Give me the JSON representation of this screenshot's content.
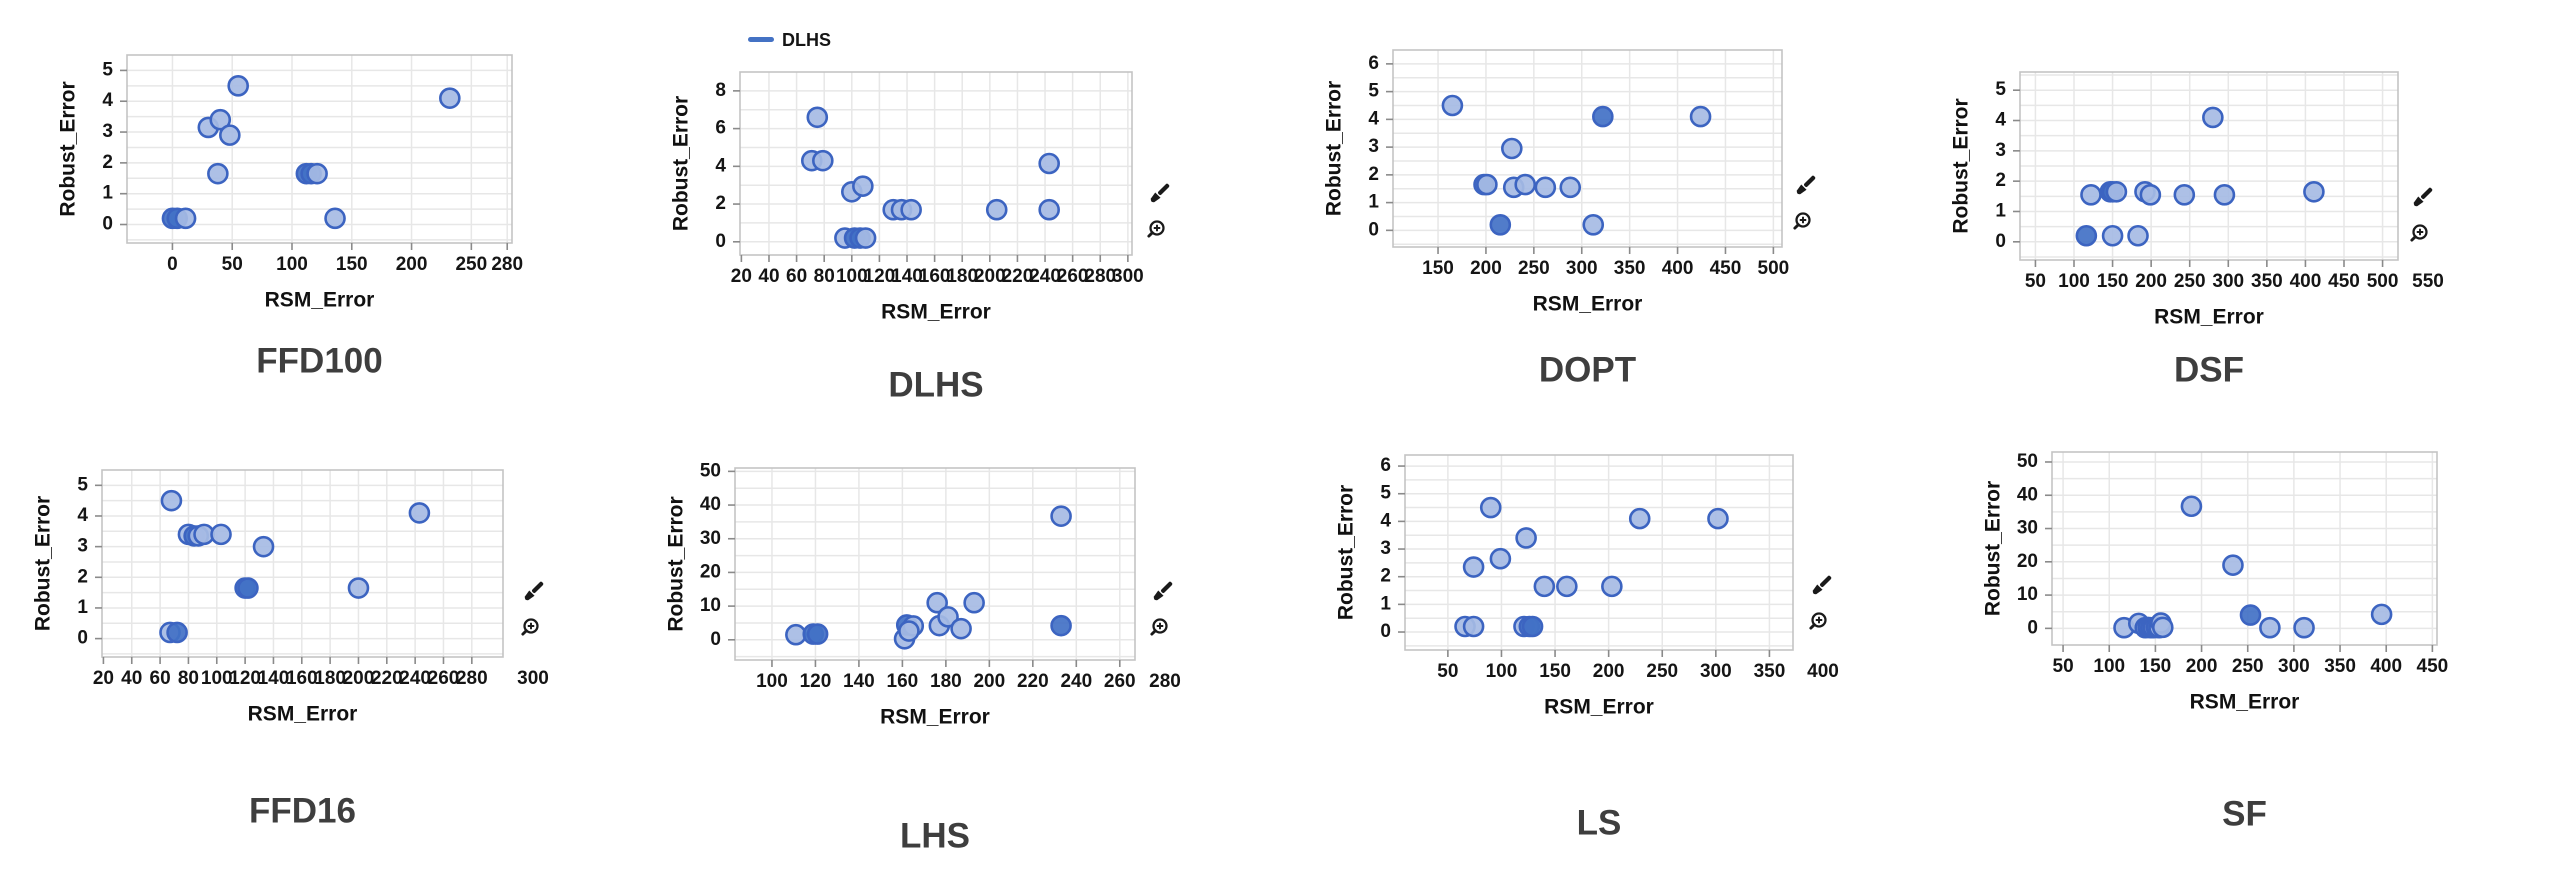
{
  "report": {
    "xlabel": "RSM_Error",
    "ylabel": "Robust_Error",
    "legend": {
      "label": "DLHS"
    }
  },
  "colors": {
    "background": "#ffffff",
    "marker_stroke": "#3c64c1",
    "marker_fill": "#a6bbe4",
    "marker_fill_dark": "#4271c6",
    "grid": "#e7e7e7",
    "frame": "#c4c4c4",
    "tick_mark": "#8a8a8a",
    "tick_label": "#151515",
    "axis_label": "#111111",
    "panel_title": "#3e3e3e",
    "legend_accent": "#4472c4",
    "icon": "#1a1a1a"
  },
  "chart_data": [
    {
      "name": "FFD100",
      "type": "scatter",
      "title": "FFD100",
      "xlabel": "RSM_Error",
      "ylabel": "Robust_Error",
      "xticks": [
        0,
        50,
        100,
        150,
        200,
        250,
        280
      ],
      "yticks": [
        0,
        1,
        2,
        3,
        4,
        5
      ],
      "yminor": 0.5,
      "xlim": [
        -38,
        284
      ],
      "ylim": [
        -0.6,
        5.5
      ],
      "grid": true,
      "legend": null,
      "icons": [],
      "points": [
        [
          0,
          0.2,
          1
        ],
        [
          4,
          0.2,
          1
        ],
        [
          11,
          0.2,
          0
        ],
        [
          30,
          3.15,
          0
        ],
        [
          40,
          3.4,
          0
        ],
        [
          48,
          2.9,
          0
        ],
        [
          38,
          1.65,
          0
        ],
        [
          55,
          4.5,
          0
        ],
        [
          112,
          1.65,
          1
        ],
        [
          116,
          1.65,
          1
        ],
        [
          121,
          1.65,
          0
        ],
        [
          136,
          0.2,
          0
        ],
        [
          232,
          4.1,
          0
        ]
      ]
    },
    {
      "name": "DLHS",
      "type": "scatter",
      "title": "DLHS",
      "xlabel": "RSM_Error",
      "ylabel": "Robust_Error",
      "xticks": [
        20,
        40,
        60,
        80,
        100,
        120,
        140,
        160,
        180,
        200,
        220,
        240,
        260,
        280,
        300
      ],
      "yticks": [
        0,
        2,
        4,
        6,
        8
      ],
      "yminor": 1,
      "xlim": [
        19,
        303
      ],
      "ylim": [
        -0.7,
        9.0
      ],
      "grid": true,
      "legend": {
        "label": "DLHS"
      },
      "icons": [
        "brush-icon",
        "zoom-in-icon"
      ],
      "points": [
        [
          71,
          4.3,
          0
        ],
        [
          79,
          4.3,
          0
        ],
        [
          75,
          6.6,
          0
        ],
        [
          100,
          2.65,
          0
        ],
        [
          108,
          2.95,
          0
        ],
        [
          130,
          1.7,
          0
        ],
        [
          136,
          1.7,
          0
        ],
        [
          143,
          1.7,
          0
        ],
        [
          205,
          1.7,
          0
        ],
        [
          243,
          4.15,
          0
        ],
        [
          243,
          1.7,
          0
        ],
        [
          95,
          0.2,
          0
        ],
        [
          102,
          0.2,
          1
        ],
        [
          106,
          0.2,
          1
        ],
        [
          110,
          0.2,
          0
        ]
      ]
    },
    {
      "name": "DOPT",
      "type": "scatter",
      "title": "DOPT",
      "xlabel": "RSM_Error",
      "ylabel": "Robust_Error",
      "xticks": [
        150,
        200,
        250,
        300,
        350,
        400,
        450,
        500
      ],
      "yticks": [
        0,
        1,
        2,
        3,
        4,
        5,
        6
      ],
      "yminor": 0.5,
      "xlim": [
        103,
        509
      ],
      "ylim": [
        -0.6,
        6.5
      ],
      "grid": true,
      "legend": null,
      "icons": [
        "brush-icon",
        "zoom-in-icon"
      ],
      "points": [
        [
          165,
          4.5,
          0
        ],
        [
          198,
          1.65,
          1
        ],
        [
          201,
          1.65,
          0
        ],
        [
          227,
          2.95,
          0
        ],
        [
          229,
          1.55,
          0
        ],
        [
          241,
          1.65,
          0
        ],
        [
          262,
          1.55,
          0
        ],
        [
          288,
          1.55,
          0
        ],
        [
          215,
          0.2,
          1
        ],
        [
          312,
          0.2,
          0
        ],
        [
          322,
          4.1,
          1
        ],
        [
          424,
          4.1,
          0
        ]
      ]
    },
    {
      "name": "DSF",
      "type": "scatter",
      "title": "DSF",
      "xlabel": "RSM_Error",
      "ylabel": "Robust_Error",
      "xticks": [
        50,
        100,
        150,
        200,
        250,
        300,
        350,
        400,
        450,
        500,
        550
      ],
      "yticks": [
        0,
        1,
        2,
        3,
        4,
        5
      ],
      "yminor": 0.5,
      "xlim": [
        30,
        520
      ],
      "ylim": [
        -0.6,
        5.6
      ],
      "grid": true,
      "legend": null,
      "icons": [
        "brush-icon",
        "zoom-in-icon"
      ],
      "points": [
        [
          122,
          1.55,
          0
        ],
        [
          147,
          1.65,
          1
        ],
        [
          150,
          1.65,
          1
        ],
        [
          155,
          1.65,
          0
        ],
        [
          192,
          1.65,
          0
        ],
        [
          199,
          1.55,
          0
        ],
        [
          243,
          1.55,
          0
        ],
        [
          295,
          1.55,
          0
        ],
        [
          411,
          1.65,
          0
        ],
        [
          280,
          4.1,
          0
        ],
        [
          116,
          0.2,
          1
        ],
        [
          150,
          0.2,
          0
        ],
        [
          183,
          0.2,
          0
        ]
      ]
    },
    {
      "name": "FFD16",
      "type": "scatter",
      "title": "FFD16",
      "xlabel": "RSM_Error",
      "ylabel": "Robust_Error",
      "xticks": [
        20,
        40,
        60,
        80,
        100,
        120,
        140,
        160,
        180,
        200,
        220,
        240,
        260,
        280,
        300
      ],
      "yticks": [
        0,
        1,
        2,
        3,
        4,
        5
      ],
      "yminor": 0.5,
      "xlim": [
        19,
        302
      ],
      "ylim": [
        -0.6,
        5.5
      ],
      "grid": true,
      "legend": null,
      "icons": [
        "brush-icon",
        "zoom-in-icon"
      ],
      "points": [
        [
          68,
          4.5,
          0
        ],
        [
          80,
          3.4,
          0
        ],
        [
          84,
          3.35,
          1
        ],
        [
          87,
          3.35,
          0
        ],
        [
          91,
          3.4,
          0
        ],
        [
          103,
          3.4,
          0
        ],
        [
          133,
          3.0,
          0
        ],
        [
          120,
          1.65,
          1
        ],
        [
          122,
          1.65,
          1
        ],
        [
          200,
          1.65,
          0
        ],
        [
          243,
          4.1,
          0
        ],
        [
          67,
          0.2,
          0
        ],
        [
          72,
          0.2,
          1
        ]
      ]
    },
    {
      "name": "LHS",
      "type": "scatter",
      "title": "LHS",
      "xlabel": "RSM_Error",
      "ylabel": "Robust_Error",
      "xticks": [
        100,
        120,
        140,
        160,
        180,
        200,
        220,
        240,
        260,
        280
      ],
      "yticks": [
        0,
        10,
        20,
        30,
        40,
        50
      ],
      "yminor": 5,
      "xlim": [
        83,
        267
      ],
      "ylim": [
        -6,
        51
      ],
      "grid": true,
      "legend": null,
      "icons": [
        "brush-icon",
        "zoom-in-icon"
      ],
      "points": [
        [
          111,
          1.5,
          0
        ],
        [
          119,
          1.7,
          1
        ],
        [
          121,
          1.7,
          1
        ],
        [
          161,
          0.3,
          0
        ],
        [
          162,
          4.4,
          1
        ],
        [
          165,
          4.1,
          0
        ],
        [
          163,
          2.6,
          0
        ],
        [
          176,
          11,
          0
        ],
        [
          177,
          4.2,
          0
        ],
        [
          181,
          6.8,
          0
        ],
        [
          187,
          3.3,
          0
        ],
        [
          193,
          11,
          0
        ],
        [
          233,
          36.7,
          0
        ],
        [
          233,
          4.2,
          1
        ]
      ]
    },
    {
      "name": "LS",
      "type": "scatter",
      "title": "LS",
      "xlabel": "RSM_Error",
      "ylabel": "Robust_Error",
      "xticks": [
        50,
        100,
        150,
        200,
        250,
        300,
        350,
        400
      ],
      "yticks": [
        0,
        1,
        2,
        3,
        4,
        5,
        6
      ],
      "yminor": 0.5,
      "xlim": [
        10,
        372
      ],
      "ylim": [
        -0.65,
        6.4
      ],
      "grid": true,
      "legend": null,
      "icons": [
        "brush-icon",
        "zoom-in-icon"
      ],
      "points": [
        [
          90,
          4.5,
          0
        ],
        [
          74,
          2.35,
          0
        ],
        [
          99,
          2.65,
          0
        ],
        [
          123,
          3.4,
          0
        ],
        [
          140,
          1.65,
          0
        ],
        [
          161,
          1.65,
          0
        ],
        [
          203,
          1.65,
          0
        ],
        [
          229,
          4.1,
          0
        ],
        [
          302,
          4.1,
          0
        ],
        [
          66,
          0.2,
          0
        ],
        [
          74,
          0.2,
          0
        ],
        [
          121,
          0.2,
          0
        ],
        [
          126,
          0.2,
          1
        ],
        [
          129,
          0.2,
          1
        ]
      ]
    },
    {
      "name": "SF",
      "type": "scatter",
      "title": "SF",
      "xlabel": "RSM_Error",
      "ylabel": "Robust_Error",
      "xticks": [
        50,
        100,
        150,
        200,
        250,
        300,
        350,
        400,
        450
      ],
      "yticks": [
        0,
        10,
        20,
        30,
        40,
        50
      ],
      "yminor": 5,
      "xlim": [
        38,
        455
      ],
      "ylim": [
        -5,
        53
      ],
      "grid": true,
      "legend": null,
      "icons": [],
      "points": [
        [
          116,
          0.2,
          0
        ],
        [
          132,
          1.5,
          0
        ],
        [
          139,
          0.2,
          0
        ],
        [
          142,
          0.3,
          1
        ],
        [
          145,
          0.2,
          1
        ],
        [
          148,
          0.2,
          0
        ],
        [
          151,
          0.3,
          1
        ],
        [
          154,
          0.2,
          0
        ],
        [
          156,
          1.6,
          0
        ],
        [
          158,
          0.3,
          0
        ],
        [
          189,
          36.7,
          0
        ],
        [
          234,
          19,
          0
        ],
        [
          253,
          4,
          1
        ],
        [
          274,
          0.2,
          0
        ],
        [
          311,
          0.2,
          0
        ],
        [
          395,
          4.2,
          0
        ]
      ]
    }
  ]
}
